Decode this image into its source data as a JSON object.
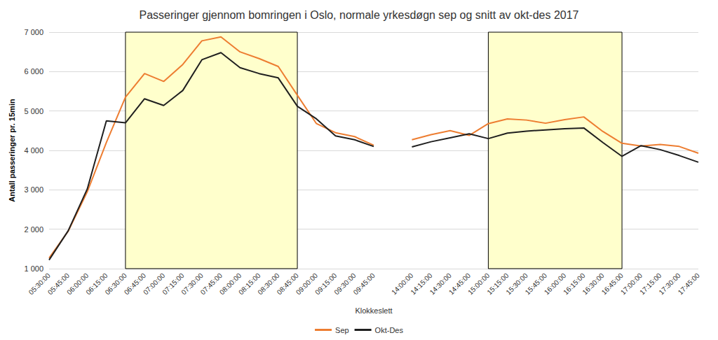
{
  "chart_data": {
    "type": "line",
    "title": "Passeringer gjennom bomringen i Oslo, normale yrkesdøgn sep og snitt av okt-des 2017",
    "x_label": "Klokkeslett",
    "y_label": "Antall passeringer pr. 15min",
    "categories": [
      "05:30:00",
      "05:45:00",
      "06:00:00",
      "06:15:00",
      "06:30:00",
      "06:45:00",
      "07:00:00",
      "07:15:00",
      "07:30:00",
      "07:45:00",
      "08:00:00",
      "08:15:00",
      "08:30:00",
      "08:45:00",
      "09:00:00",
      "09:15:00",
      "09:30:00",
      "09:45:00",
      null,
      "14:00:00",
      "14:15:00",
      "14:30:00",
      "14:45:00",
      "15:00:00",
      "15:15:00",
      "15:30:00",
      "15:45:00",
      "16:00:00",
      "16:15:00",
      "16:30:00",
      "16:45:00",
      "17:00:00",
      "17:15:00",
      "17:30:00",
      "17:45:00"
    ],
    "series": [
      {
        "name": "Sep",
        "color": "#ED7D31",
        "values": [
          1270,
          1950,
          2950,
          4200,
          5350,
          5950,
          5750,
          6180,
          6780,
          6880,
          6500,
          6330,
          6130,
          5400,
          4680,
          4450,
          4350,
          4130,
          null,
          4270,
          4400,
          4500,
          4380,
          4680,
          4800,
          4770,
          4690,
          4780,
          4850,
          4480,
          4180,
          4110,
          4150,
          4100,
          3930
        ]
      },
      {
        "name": "Okt-Des",
        "color": "#1F1F1F",
        "values": [
          1220,
          1960,
          3020,
          4750,
          4700,
          5310,
          5140,
          5520,
          6300,
          6480,
          6100,
          5950,
          5840,
          5120,
          4800,
          4370,
          4270,
          4100,
          null,
          4090,
          4220,
          4320,
          4420,
          4300,
          4440,
          4490,
          4520,
          4550,
          4570,
          4200,
          3850,
          4120,
          4020,
          3870,
          3700
        ]
      }
    ],
    "highlight_ranges": [
      [
        "06:30:00",
        "08:45:00"
      ],
      [
        "15:00:00",
        "16:45:00"
      ]
    ],
    "ylim": [
      1000,
      7000
    ],
    "yticks": [
      {
        "value": 1000,
        "label": "1 000"
      },
      {
        "value": 2000,
        "label": "2 000"
      },
      {
        "value": 3000,
        "label": "3 000"
      },
      {
        "value": 4000,
        "label": "4 000"
      },
      {
        "value": 5000,
        "label": "5 000"
      },
      {
        "value": 6000,
        "label": "6 000"
      },
      {
        "value": 7000,
        "label": "7 000"
      }
    ],
    "grid": true,
    "legend": "bottom"
  }
}
